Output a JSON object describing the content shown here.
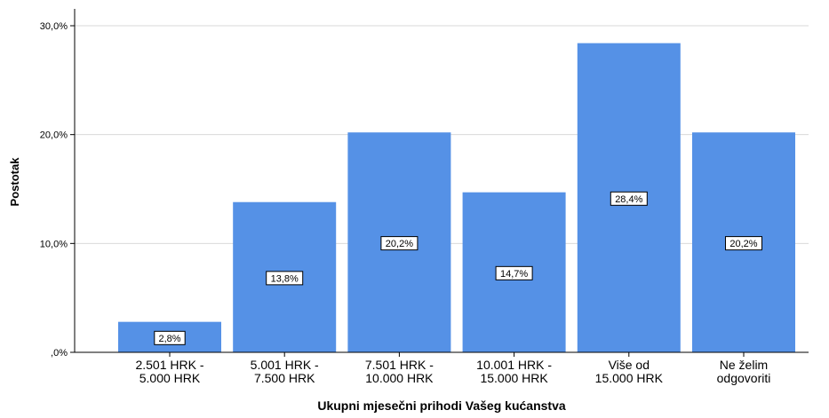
{
  "chart_data": {
    "type": "bar",
    "xlabel": "Ukupni mjesečni prihodi Vašeg kućanstva",
    "ylabel": "Postotak",
    "ylim": [
      0,
      30
    ],
    "yticks": [
      0,
      10,
      20,
      30
    ],
    "ytick_labels": [
      ",0%",
      "10,0%",
      "20,0%",
      "30,0%"
    ],
    "categories": [
      [
        "2.501 HRK -",
        "5.000 HRK"
      ],
      [
        "5.001 HRK -",
        "7.500 HRK"
      ],
      [
        "7.501 HRK -",
        "10.000 HRK"
      ],
      [
        "10.001 HRK -",
        "15.000 HRK"
      ],
      [
        "Više od",
        "15.000 HRK"
      ],
      [
        "Ne želim",
        "odgovoriti"
      ]
    ],
    "values": [
      2.8,
      13.8,
      20.2,
      14.7,
      28.4,
      20.2
    ],
    "value_labels": [
      "2,8%",
      "13,8%",
      "20,2%",
      "14,7%",
      "28,4%",
      "20,2%"
    ],
    "bar_color": "#5591e6",
    "grid": true,
    "legend": "none"
  }
}
